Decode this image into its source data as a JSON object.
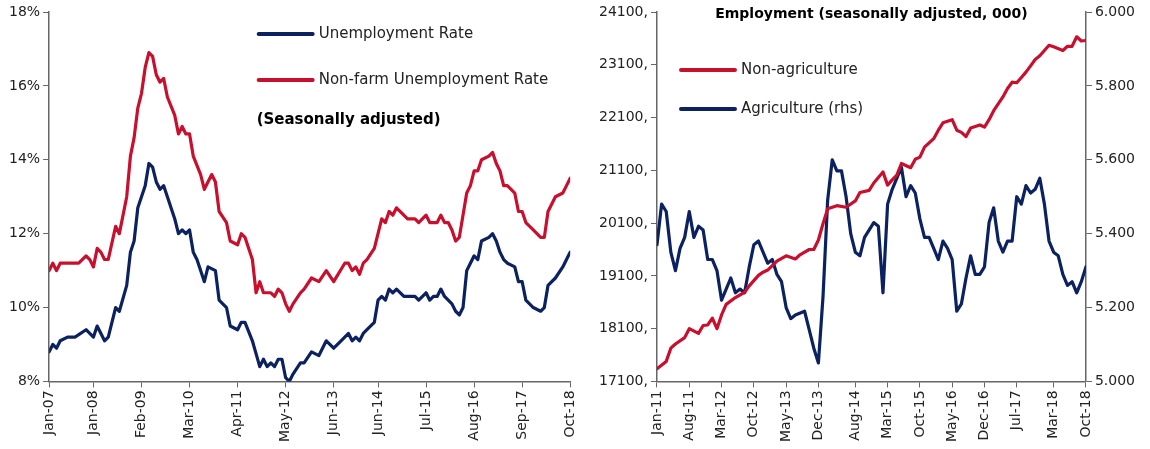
{
  "chart_data": [
    {
      "type": "line",
      "subtitle": "(Seasonally adjusted)",
      "legend": "top right",
      "xlim": [
        "2007-01",
        "2018-10"
      ],
      "xticks": [
        {
          "value": "2007-01",
          "label": "Jan-07"
        },
        {
          "value": "2008-01",
          "label": "Jan-08"
        },
        {
          "value": "2009-02",
          "label": "Feb-09"
        },
        {
          "value": "2010-03",
          "label": "Mar-10"
        },
        {
          "value": "2011-04",
          "label": "Apr-11"
        },
        {
          "value": "2012-05",
          "label": "May-12"
        },
        {
          "value": "2013-06",
          "label": "Jun-13"
        },
        {
          "value": "2014-06",
          "label": "Jun-14"
        },
        {
          "value": "2015-07",
          "label": "Jul-15"
        },
        {
          "value": "2016-08",
          "label": "Aug-16"
        },
        {
          "value": "2017-09",
          "label": "Sep-17"
        },
        {
          "value": "2018-10",
          "label": "Oct-18"
        }
      ],
      "ylim": [
        8,
        18
      ],
      "yticks": [
        {
          "value": 8,
          "label": "8%"
        },
        {
          "value": 10,
          "label": "10%"
        },
        {
          "value": 12,
          "label": "12%"
        },
        {
          "value": 14,
          "label": "14%"
        },
        {
          "value": 16,
          "label": "16%"
        },
        {
          "value": 18,
          "label": "18%"
        }
      ],
      "series": [
        {
          "name": "Unemployment Rate",
          "color": "#0b2160",
          "x": [
            "2007-01",
            "2007-02",
            "2007-03",
            "2007-04",
            "2007-06",
            "2007-08",
            "2007-11",
            "2008-01",
            "2008-02",
            "2008-04",
            "2008-05",
            "2008-07",
            "2008-08",
            "2008-10",
            "2008-11",
            "2008-12",
            "2009-01",
            "2009-03",
            "2009-04",
            "2009-05",
            "2009-06",
            "2009-07",
            "2009-08",
            "2009-09",
            "2009-11",
            "2009-12",
            "2010-01",
            "2010-02",
            "2010-03",
            "2010-04",
            "2010-05",
            "2010-06",
            "2010-07",
            "2010-08",
            "2010-10",
            "2010-11",
            "2011-01",
            "2011-02",
            "2011-04",
            "2011-05",
            "2011-06",
            "2011-08",
            "2011-10",
            "2011-11",
            "2011-12",
            "2012-01",
            "2012-02",
            "2012-03",
            "2012-04",
            "2012-05",
            "2012-06",
            "2012-07",
            "2012-09",
            "2012-10",
            "2012-12",
            "2013-02",
            "2013-04",
            "2013-06",
            "2013-08",
            "2013-10",
            "2013-11",
            "2013-12",
            "2014-01",
            "2014-02",
            "2014-03",
            "2014-05",
            "2014-06",
            "2014-07",
            "2014-08",
            "2014-09",
            "2014-10",
            "2014-11",
            "2015-01",
            "2015-04",
            "2015-05",
            "2015-07",
            "2015-08",
            "2015-09",
            "2015-10",
            "2015-11",
            "2015-12",
            "2016-01",
            "2016-02",
            "2016-03",
            "2016-04",
            "2016-05",
            "2016-06",
            "2016-07",
            "2016-08",
            "2016-09",
            "2016-10",
            "2016-12",
            "2017-01",
            "2017-02",
            "2017-03",
            "2017-04",
            "2017-05",
            "2017-07",
            "2017-08",
            "2017-09",
            "2017-10",
            "2017-12",
            "2018-02",
            "2018-03",
            "2018-04",
            "2018-06",
            "2018-08",
            "2018-09",
            "2018-10"
          ],
          "values": [
            8.8,
            9.0,
            8.9,
            9.1,
            9.2,
            9.2,
            9.4,
            9.2,
            9.5,
            9.1,
            9.2,
            10.0,
            9.9,
            10.6,
            11.5,
            11.8,
            12.7,
            13.3,
            13.9,
            13.8,
            13.4,
            13.2,
            13.3,
            13.0,
            12.4,
            12.0,
            12.1,
            12.0,
            12.1,
            11.5,
            11.3,
            11.0,
            10.7,
            11.1,
            11.0,
            10.2,
            10.0,
            9.5,
            9.4,
            9.6,
            9.6,
            9.1,
            8.4,
            8.6,
            8.4,
            8.5,
            8.4,
            8.6,
            8.6,
            8.1,
            8.0,
            8.2,
            8.5,
            8.5,
            8.8,
            8.7,
            9.1,
            8.9,
            9.1,
            9.3,
            9.1,
            9.2,
            9.1,
            9.3,
            9.4,
            9.6,
            10.2,
            10.3,
            10.2,
            10.5,
            10.4,
            10.5,
            10.3,
            10.3,
            10.2,
            10.4,
            10.2,
            10.3,
            10.3,
            10.5,
            10.3,
            10.2,
            10.1,
            9.9,
            9.8,
            10.0,
            11.0,
            11.2,
            11.4,
            11.3,
            11.8,
            11.9,
            12.0,
            11.8,
            11.5,
            11.3,
            11.2,
            11.1,
            10.7,
            10.7,
            10.2,
            10.0,
            9.9,
            10.0,
            10.6,
            10.8,
            11.1,
            11.3,
            11.5
          ]
        },
        {
          "name": "Non-farm Unemployment Rate",
          "color": "#c8102e",
          "x": [
            "2007-01",
            "2007-02",
            "2007-03",
            "2007-04",
            "2007-09",
            "2007-11",
            "2007-12",
            "2008-01",
            "2008-02",
            "2008-03",
            "2008-04",
            "2008-05",
            "2008-07",
            "2008-08",
            "2008-10",
            "2008-11",
            "2008-12",
            "2009-01",
            "2009-02",
            "2009-03",
            "2009-04",
            "2009-05",
            "2009-06",
            "2009-07",
            "2009-08",
            "2009-09",
            "2009-11",
            "2009-12",
            "2010-01",
            "2010-02",
            "2010-03",
            "2010-04",
            "2010-06",
            "2010-07",
            "2010-09",
            "2010-10",
            "2010-11",
            "2011-01",
            "2011-02",
            "2011-04",
            "2011-05",
            "2011-06",
            "2011-08",
            "2011-09",
            "2011-10",
            "2011-11",
            "2012-01",
            "2012-02",
            "2012-03",
            "2012-04",
            "2012-05",
            "2012-06",
            "2012-07",
            "2012-09",
            "2012-10",
            "2012-12",
            "2013-02",
            "2013-04",
            "2013-06",
            "2013-09",
            "2013-10",
            "2013-11",
            "2013-12",
            "2014-01",
            "2014-02",
            "2014-03",
            "2014-05",
            "2014-06",
            "2014-07",
            "2014-08",
            "2014-09",
            "2014-10",
            "2014-11",
            "2015-02",
            "2015-04",
            "2015-05",
            "2015-07",
            "2015-08",
            "2015-10",
            "2015-11",
            "2015-12",
            "2016-01",
            "2016-02",
            "2016-03",
            "2016-04",
            "2016-06",
            "2016-07",
            "2016-08",
            "2016-09",
            "2016-10",
            "2016-12",
            "2017-01",
            "2017-02",
            "2017-03",
            "2017-04",
            "2017-05",
            "2017-07",
            "2017-08",
            "2017-09",
            "2017-10",
            "2017-12",
            "2018-02",
            "2018-03",
            "2018-04",
            "2018-06",
            "2018-08",
            "2018-09",
            "2018-10"
          ],
          "values": [
            11.0,
            11.2,
            11.0,
            11.2,
            11.2,
            11.4,
            11.3,
            11.1,
            11.6,
            11.5,
            11.3,
            11.3,
            12.2,
            12.0,
            13.0,
            14.1,
            14.6,
            15.4,
            15.8,
            16.5,
            16.9,
            16.8,
            16.3,
            16.1,
            16.2,
            15.7,
            15.2,
            14.7,
            14.9,
            14.7,
            14.7,
            14.1,
            13.6,
            13.2,
            13.6,
            13.4,
            12.6,
            12.3,
            11.8,
            11.7,
            12.0,
            11.9,
            11.3,
            10.4,
            10.7,
            10.4,
            10.4,
            10.3,
            10.5,
            10.4,
            10.1,
            9.9,
            10.1,
            10.4,
            10.5,
            10.8,
            10.7,
            11.0,
            10.7,
            11.2,
            11.2,
            11.0,
            11.1,
            10.9,
            11.2,
            11.3,
            11.6,
            12.0,
            12.4,
            12.3,
            12.6,
            12.5,
            12.7,
            12.4,
            12.4,
            12.3,
            12.5,
            12.3,
            12.3,
            12.5,
            12.3,
            12.3,
            12.1,
            11.8,
            11.9,
            13.1,
            13.3,
            13.7,
            13.7,
            14.0,
            14.1,
            14.2,
            13.9,
            13.7,
            13.3,
            13.3,
            13.1,
            12.6,
            12.6,
            12.3,
            12.1,
            11.9,
            11.9,
            12.6,
            13.0,
            13.1,
            13.3,
            13.5
          ]
        }
      ]
    },
    {
      "type": "line",
      "title": "Employment (seasonally adjusted, 000)",
      "legend": "top left",
      "xlim": [
        "2011-01",
        "2018-10"
      ],
      "xticks": [
        {
          "value": "2011-01",
          "label": "Jan-11"
        },
        {
          "value": "2011-08",
          "label": "Aug-11"
        },
        {
          "value": "2012-03",
          "label": "Mar-12"
        },
        {
          "value": "2012-10",
          "label": "Oct-12"
        },
        {
          "value": "2013-05",
          "label": "May-13"
        },
        {
          "value": "2013-12",
          "label": "Dec-13"
        },
        {
          "value": "2014-08",
          "label": "Aug-14"
        },
        {
          "value": "2015-03",
          "label": "Mar-15"
        },
        {
          "value": "2015-10",
          "label": "Oct-15"
        },
        {
          "value": "2016-05",
          "label": "May-16"
        },
        {
          "value": "2016-12",
          "label": "Dec-16"
        },
        {
          "value": "2017-07",
          "label": "Jul-17"
        },
        {
          "value": "2018-03",
          "label": "Mar-18"
        },
        {
          "value": "2018-10",
          "label": "Oct-18"
        }
      ],
      "ylim": [
        17100,
        24100
      ],
      "yticks": [
        {
          "value": 17100,
          "label": "17100,"
        },
        {
          "value": 18100,
          "label": "18100,"
        },
        {
          "value": 19100,
          "label": "19100,"
        },
        {
          "value": 20100,
          "label": "20100,"
        },
        {
          "value": 21100,
          "label": "21100,"
        },
        {
          "value": 22100,
          "label": "22100,"
        },
        {
          "value": 23100,
          "label": "23100,"
        },
        {
          "value": 24100,
          "label": "24100,"
        }
      ],
      "y2lim": [
        5000,
        6000
      ],
      "y2ticks": [
        {
          "value": 5000,
          "label": "5.000"
        },
        {
          "value": 5200,
          "label": "5.200"
        },
        {
          "value": 5400,
          "label": "5.400"
        },
        {
          "value": 5600,
          "label": "5.600"
        },
        {
          "value": 5800,
          "label": "5.800"
        },
        {
          "value": 6000,
          "label": "6.000"
        }
      ],
      "series": [
        {
          "name": "Non-agriculture",
          "color": "#c8102e",
          "x": [
            "2011-01",
            "2011-03",
            "2011-04",
            "2011-05",
            "2011-07",
            "2011-08",
            "2011-10",
            "2011-11",
            "2011-12",
            "2012-01",
            "2012-02",
            "2012-03",
            "2012-04",
            "2012-06",
            "2012-08",
            "2012-09",
            "2012-11",
            "2012-12",
            "2013-01",
            "2013-03",
            "2013-05",
            "2013-07",
            "2013-08",
            "2013-10",
            "2013-11",
            "2013-12",
            "2014-01",
            "2014-02",
            "2014-04",
            "2014-06",
            "2014-08",
            "2014-09",
            "2014-11",
            "2014-12",
            "2015-02",
            "2015-03",
            "2015-04",
            "2015-05",
            "2015-06",
            "2015-08",
            "2015-09",
            "2015-10",
            "2015-11",
            "2016-01",
            "2016-02",
            "2016-03",
            "2016-05",
            "2016-06",
            "2016-07",
            "2016-08",
            "2016-09",
            "2016-11",
            "2016-12",
            "2017-01",
            "2017-02",
            "2017-04",
            "2017-05",
            "2017-06",
            "2017-07",
            "2017-08",
            "2017-09",
            "2017-10",
            "2017-11",
            "2017-12",
            "2018-02",
            "2018-03",
            "2018-05",
            "2018-06",
            "2018-07",
            "2018-08",
            "2018-09",
            "2018-10"
          ],
          "values": [
            17340,
            17480,
            17730,
            17810,
            17930,
            18100,
            18010,
            18160,
            18170,
            18300,
            18100,
            18360,
            18560,
            18690,
            18790,
            18910,
            19110,
            19170,
            19210,
            19380,
            19480,
            19420,
            19500,
            19600,
            19600,
            19780,
            20090,
            20370,
            20430,
            20400,
            20520,
            20680,
            20720,
            20860,
            21070,
            20820,
            20920,
            21010,
            21230,
            21150,
            21310,
            21350,
            21540,
            21700,
            21860,
            22000,
            22060,
            21860,
            21820,
            21740,
            21900,
            21960,
            21920,
            22060,
            22230,
            22490,
            22650,
            22770,
            22760,
            22860,
            22960,
            23080,
            23200,
            23270,
            23470,
            23440,
            23370,
            23450,
            23450,
            23630,
            23550,
            23560
          ]
        },
        {
          "name": "Agriculture (rhs)",
          "color": "#0b2160",
          "axis": "y2",
          "x": [
            "2011-01",
            "2011-02",
            "2011-03",
            "2011-04",
            "2011-05",
            "2011-06",
            "2011-07",
            "2011-08",
            "2011-09",
            "2011-10",
            "2011-11",
            "2011-12",
            "2012-01",
            "2012-02",
            "2012-03",
            "2012-04",
            "2012-05",
            "2012-06",
            "2012-07",
            "2012-08",
            "2012-09",
            "2012-10",
            "2012-11",
            "2012-12",
            "2013-01",
            "2013-02",
            "2013-03",
            "2013-04",
            "2013-05",
            "2013-06",
            "2013-07",
            "2013-09",
            "2013-10",
            "2013-11",
            "2013-12",
            "2014-01",
            "2014-02",
            "2014-03",
            "2014-04",
            "2014-05",
            "2014-06",
            "2014-07",
            "2014-08",
            "2014-09",
            "2014-10",
            "2014-12",
            "2015-01",
            "2015-02",
            "2015-03",
            "2015-04",
            "2015-06",
            "2015-07",
            "2015-08",
            "2015-09",
            "2015-10",
            "2015-11",
            "2015-12",
            "2016-01",
            "2016-02",
            "2016-03",
            "2016-04",
            "2016-05",
            "2016-06",
            "2016-07",
            "2016-08",
            "2016-09",
            "2016-10",
            "2016-11",
            "2016-12",
            "2017-01",
            "2017-02",
            "2017-03",
            "2017-04",
            "2017-05",
            "2017-06",
            "2017-07",
            "2017-08",
            "2017-09",
            "2017-10",
            "2017-11",
            "2017-12",
            "2018-01",
            "2018-02",
            "2018-03",
            "2018-04",
            "2018-05",
            "2018-06",
            "2018-07",
            "2018-08",
            "2018-09",
            "2018-10"
          ],
          "values": [
            5370,
            5480,
            5460,
            5350,
            5300,
            5360,
            5390,
            5460,
            5390,
            5420,
            5410,
            5330,
            5330,
            5300,
            5220,
            5250,
            5280,
            5240,
            5250,
            5240,
            5310,
            5370,
            5380,
            5350,
            5320,
            5330,
            5290,
            5270,
            5200,
            5170,
            5180,
            5190,
            5140,
            5090,
            5050,
            5230,
            5490,
            5600,
            5570,
            5570,
            5500,
            5400,
            5350,
            5340,
            5390,
            5430,
            5420,
            5240,
            5480,
            5520,
            5580,
            5500,
            5530,
            5510,
            5440,
            5390,
            5390,
            5360,
            5330,
            5380,
            5360,
            5330,
            5190,
            5210,
            5280,
            5340,
            5290,
            5290,
            5310,
            5430,
            5470,
            5380,
            5350,
            5380,
            5380,
            5500,
            5480,
            5530,
            5510,
            5520,
            5550,
            5480,
            5380,
            5350,
            5340,
            5290,
            5260,
            5270,
            5240,
            5270,
            5310
          ]
        }
      ]
    }
  ]
}
